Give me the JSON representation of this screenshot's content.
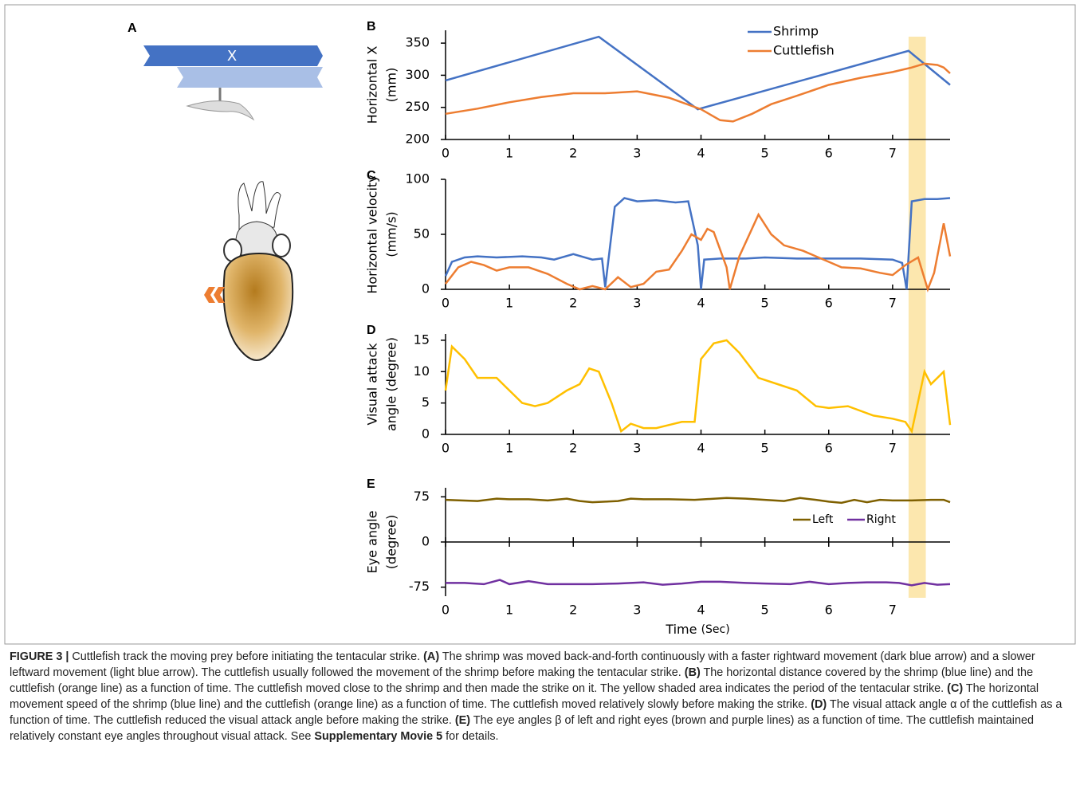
{
  "panel_a": {
    "label": "A",
    "arrow_label": "X"
  },
  "highlight": {
    "x": [
      7.25,
      7.52
    ],
    "color": "#fbe3a0"
  },
  "chart_data": [
    {
      "type": "line",
      "panel": "B",
      "ylabel": [
        "Horizontal X",
        "(mm)"
      ],
      "xlim": [
        0,
        7.9
      ],
      "ylim": [
        200,
        370
      ],
      "xticks": [
        0,
        1,
        2,
        3,
        4,
        5,
        6,
        7
      ],
      "yticks": [
        200,
        250,
        300,
        350
      ],
      "legend": "upper right",
      "series": [
        {
          "name": "Shrimp",
          "color": "#4472c4",
          "x": [
            0,
            2.4,
            3.95,
            7.25,
            7.9
          ],
          "values": [
            292,
            360,
            247,
            338,
            285
          ]
        },
        {
          "name": "Cuttlefish",
          "color": "#ed7d31",
          "x": [
            0,
            0.5,
            1,
            1.5,
            2,
            2.5,
            3,
            3.5,
            4,
            4.3,
            4.5,
            4.8,
            5.1,
            5.5,
            6,
            6.5,
            7,
            7.3,
            7.5,
            7.7,
            7.8,
            7.9
          ],
          "values": [
            240,
            248,
            258,
            266,
            272,
            272,
            275,
            265,
            247,
            230,
            228,
            240,
            255,
            268,
            285,
            296,
            305,
            312,
            318,
            316,
            312,
            303
          ]
        }
      ]
    },
    {
      "type": "line",
      "panel": "C",
      "ylabel": [
        "Horizontal velocity",
        "(mm/s)"
      ],
      "xlim": [
        0,
        7.9
      ],
      "ylim": [
        0,
        100
      ],
      "xticks": [
        0,
        1,
        2,
        3,
        4,
        5,
        6,
        7
      ],
      "yticks": [
        0,
        50,
        100
      ],
      "series": [
        {
          "color": "#4472c4",
          "x": [
            0,
            0.1,
            0.3,
            0.5,
            0.8,
            1.2,
            1.5,
            1.7,
            2,
            2.3,
            2.45,
            2.5,
            2.65,
            2.8,
            3,
            3.3,
            3.6,
            3.8,
            3.95,
            4,
            4.05,
            4.3,
            4.7,
            5,
            5.5,
            6,
            6.5,
            7,
            7.15,
            7.22,
            7.3,
            7.5,
            7.7,
            7.9
          ],
          "values": [
            12,
            25,
            29,
            30,
            29,
            30,
            29,
            27,
            32,
            27,
            28,
            2,
            75,
            83,
            80,
            81,
            79,
            80,
            40,
            0,
            27,
            28,
            28,
            29,
            28,
            28,
            28,
            27,
            24,
            0,
            80,
            82,
            82,
            83
          ]
        },
        {
          "color": "#ed7d31",
          "x": [
            0,
            0.2,
            0.4,
            0.6,
            0.8,
            1,
            1.3,
            1.6,
            1.9,
            2.1,
            2.3,
            2.5,
            2.7,
            2.9,
            3.1,
            3.3,
            3.5,
            3.7,
            3.85,
            4,
            4.1,
            4.2,
            4.4,
            4.45,
            4.6,
            4.9,
            5.1,
            5.3,
            5.6,
            5.8,
            6,
            6.2,
            6.5,
            6.8,
            7,
            7.2,
            7.4,
            7.55,
            7.65,
            7.8,
            7.9
          ],
          "values": [
            5,
            20,
            25,
            22,
            17,
            20,
            20,
            14,
            5,
            0,
            3,
            0,
            11,
            2,
            5,
            16,
            18,
            35,
            50,
            45,
            55,
            52,
            20,
            0,
            30,
            68,
            50,
            40,
            35,
            30,
            25,
            20,
            19,
            15,
            13,
            22,
            29,
            0,
            15,
            60,
            30
          ]
        }
      ]
    },
    {
      "type": "line",
      "panel": "D",
      "ylabel": [
        "Visual attack",
        "angle (degree)"
      ],
      "xlim": [
        0,
        7.9
      ],
      "ylim": [
        0,
        16
      ],
      "xticks": [
        0,
        1,
        2,
        3,
        4,
        5,
        6,
        7
      ],
      "yticks": [
        0,
        5,
        10,
        15
      ],
      "series": [
        {
          "color": "#ffc000",
          "x": [
            0,
            0.1,
            0.3,
            0.5,
            0.8,
            1,
            1.2,
            1.4,
            1.6,
            1.9,
            2.1,
            2.25,
            2.4,
            2.6,
            2.75,
            2.9,
            3.1,
            3.3,
            3.5,
            3.7,
            3.9,
            4,
            4.2,
            4.4,
            4.6,
            4.9,
            5.2,
            5.5,
            5.8,
            6,
            6.3,
            6.7,
            7,
            7.2,
            7.3,
            7.5,
            7.6,
            7.8,
            7.9
          ],
          "values": [
            7,
            14,
            12,
            9,
            9,
            7,
            5,
            4.5,
            5,
            7,
            8,
            10.5,
            10,
            5,
            0.5,
            1.7,
            1,
            1,
            1.5,
            2,
            2,
            12,
            14.5,
            15,
            13,
            9,
            8,
            7,
            4.5,
            4.2,
            4.5,
            3,
            2.5,
            2,
            0.5,
            10,
            8,
            10,
            1.5
          ]
        }
      ]
    },
    {
      "type": "line",
      "panel": "E",
      "ylabel": [
        "Eye angle",
        "(degree)"
      ],
      "xlabel": [
        "Time",
        "(Sec)"
      ],
      "xlim": [
        0,
        7.9
      ],
      "ylim": [
        -90,
        90
      ],
      "xticks": [
        0,
        1,
        2,
        3,
        4,
        5,
        6,
        7
      ],
      "yticks": [
        -75,
        0,
        75
      ],
      "legend": "center right",
      "series": [
        {
          "name": "Left",
          "color": "#7f6000",
          "x": [
            0,
            0.5,
            0.8,
            1,
            1.3,
            1.6,
            1.9,
            2.1,
            2.3,
            2.5,
            2.7,
            2.9,
            3.1,
            3.5,
            3.9,
            4.4,
            4.7,
            5,
            5.3,
            5.55,
            5.8,
            6,
            6.2,
            6.4,
            6.6,
            6.8,
            7,
            7.3,
            7.6,
            7.8,
            7.9
          ],
          "values": [
            70,
            68,
            72,
            71,
            71,
            69,
            72,
            68,
            66,
            67,
            68,
            72,
            71,
            71,
            70,
            73,
            72,
            70,
            68,
            73,
            70,
            67,
            65,
            70,
            66,
            70,
            69,
            69,
            70,
            70,
            66
          ]
        },
        {
          "name": "Right",
          "color": "#7030a0",
          "x": [
            0,
            0.3,
            0.6,
            0.85,
            1,
            1.3,
            1.6,
            1.9,
            2.3,
            2.7,
            3.1,
            3.4,
            3.7,
            4,
            4.3,
            4.7,
            5,
            5.4,
            5.7,
            6,
            6.3,
            6.6,
            6.9,
            7.1,
            7.3,
            7.5,
            7.7,
            7.9
          ],
          "values": [
            -68,
            -68,
            -70,
            -63,
            -70,
            -65,
            -70,
            -70,
            -70,
            -69,
            -67,
            -71,
            -69,
            -66,
            -66,
            -68,
            -69,
            -70,
            -66,
            -70,
            -68,
            -67,
            -67,
            -68,
            -72,
            -68,
            -71,
            -70
          ]
        }
      ]
    }
  ],
  "caption": [
    {
      "text": "FIGURE 3 |",
      "bold": true
    },
    {
      "text": " Cuttlefish track the moving prey before initiating the tentacular strike. "
    },
    {
      "text": "(A)",
      "bold": true
    },
    {
      "text": " The shrimp was moved back-and-forth continuously with a faster rightward movement (dark blue arrow) and a slower leftward movement (light blue arrow). The cuttlefish usually followed the movement of the shrimp before making the tentacular strike. "
    },
    {
      "text": "(B)",
      "bold": true
    },
    {
      "text": " The horizontal distance covered by the shrimp (blue line) and the cuttlefish (orange line) as a function of time. The cuttlefish moved close to the shrimp and then made the strike on it. The yellow shaded area indicates the period of the tentacular strike. "
    },
    {
      "text": "(C)",
      "bold": true
    },
    {
      "text": " The horizontal movement speed of the shrimp (blue line) and the cuttlefish (orange line) as a function of time. The cuttlefish moved relatively slowly before making the strike. "
    },
    {
      "text": "(D)",
      "bold": true
    },
    {
      "text": " The visual attack angle α of the cuttlefish as a function of time. The cuttlefish reduced the visual attack angle before making the strike. "
    },
    {
      "text": "(E)",
      "bold": true
    },
    {
      "text": " The eye angles β of left and right eyes (brown and purple lines) as a function of time. The cuttlefish maintained relatively constant eye angles throughout visual attack. See "
    },
    {
      "text": "Supplementary Movie 5",
      "bold": true
    },
    {
      "text": " for details."
    }
  ]
}
